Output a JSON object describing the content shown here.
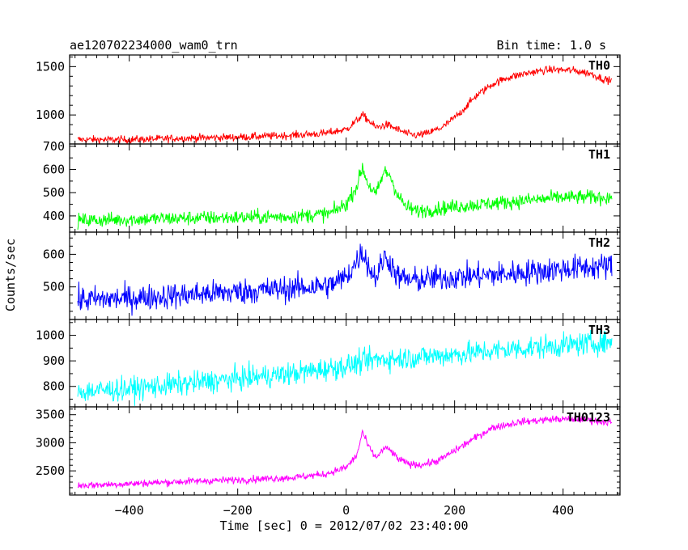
{
  "header": {
    "title": "ae120702234000_wam0_trn",
    "bin_time": "Bin time: 1.0 s"
  },
  "axes": {
    "xlabel": "Time [sec] 0 = 2012/07/02 23:40:00",
    "ylabel": "Counts/sec",
    "xlim": [
      -510,
      505
    ],
    "x_major_ticks": [
      -400,
      -200,
      0,
      200,
      400
    ],
    "x_tick_labels": [
      "−400",
      "−200",
      "0",
      "200",
      "400"
    ],
    "x_minor_step": 20
  },
  "chart_data": [
    {
      "type": "line",
      "series": [
        {
          "name": "TH0",
          "color": "#ff0000"
        }
      ],
      "ylim": [
        700,
        1620
      ],
      "major_ticks": [
        1000,
        1500
      ],
      "tick_labels": [
        "1000",
        "1500"
      ],
      "minor_step": 100,
      "data_range": [
        -495,
        490
      ],
      "noise": 28,
      "profile": [
        [
          -495,
          745
        ],
        [
          -400,
          745
        ],
        [
          -300,
          760
        ],
        [
          -200,
          770
        ],
        [
          -100,
          790
        ],
        [
          -40,
          810
        ],
        [
          0,
          850
        ],
        [
          15,
          920
        ],
        [
          30,
          1000
        ],
        [
          40,
          950
        ],
        [
          55,
          870
        ],
        [
          75,
          900
        ],
        [
          95,
          850
        ],
        [
          115,
          800
        ],
        [
          130,
          790
        ],
        [
          150,
          810
        ],
        [
          180,
          880
        ],
        [
          210,
          1020
        ],
        [
          240,
          1200
        ],
        [
          270,
          1320
        ],
        [
          300,
          1390
        ],
        [
          340,
          1440
        ],
        [
          380,
          1470
        ],
        [
          420,
          1460
        ],
        [
          450,
          1430
        ],
        [
          470,
          1380
        ],
        [
          490,
          1350
        ]
      ]
    },
    {
      "type": "line",
      "series": [
        {
          "name": "TH1",
          "color": "#00ff00"
        }
      ],
      "ylim": [
        330,
        710
      ],
      "major_ticks": [
        400,
        500,
        600,
        700
      ],
      "tick_labels": [
        "400",
        "500",
        "600",
        "700"
      ],
      "minor_step": 50,
      "data_range": [
        -495,
        490
      ],
      "noise": 22,
      "profile": [
        [
          -495,
          380
        ],
        [
          -400,
          385
        ],
        [
          -300,
          390
        ],
        [
          -200,
          393
        ],
        [
          -100,
          397
        ],
        [
          -30,
          410
        ],
        [
          0,
          450
        ],
        [
          20,
          530
        ],
        [
          30,
          610
        ],
        [
          40,
          540
        ],
        [
          55,
          490
        ],
        [
          70,
          590
        ],
        [
          80,
          580
        ],
        [
          95,
          490
        ],
        [
          110,
          440
        ],
        [
          130,
          420
        ],
        [
          200,
          440
        ],
        [
          300,
          460
        ],
        [
          400,
          480
        ],
        [
          490,
          480
        ]
      ]
    },
    {
      "type": "line",
      "series": [
        {
          "name": "TH2",
          "color": "#0000ff"
        }
      ],
      "ylim": [
        400,
        668
      ],
      "major_ticks": [
        500,
        600
      ],
      "tick_labels": [
        "500",
        "600"
      ],
      "minor_step": 25,
      "data_range": [
        -495,
        490
      ],
      "noise": 28,
      "profile": [
        [
          -495,
          460
        ],
        [
          -400,
          465
        ],
        [
          -300,
          475
        ],
        [
          -200,
          485
        ],
        [
          -100,
          495
        ],
        [
          -30,
          505
        ],
        [
          0,
          530
        ],
        [
          20,
          580
        ],
        [
          30,
          610
        ],
        [
          45,
          550
        ],
        [
          55,
          530
        ],
        [
          70,
          590
        ],
        [
          80,
          580
        ],
        [
          95,
          530
        ],
        [
          120,
          520
        ],
        [
          200,
          530
        ],
        [
          300,
          540
        ],
        [
          400,
          555
        ],
        [
          490,
          565
        ]
      ]
    },
    {
      "type": "line",
      "series": [
        {
          "name": "TH3",
          "color": "#00ffff"
        }
      ],
      "ylim": [
        720,
        1062
      ],
      "major_ticks": [
        800,
        900,
        1000
      ],
      "tick_labels": [
        "800",
        "900",
        "1000"
      ],
      "minor_step": 50,
      "data_range": [
        -495,
        490
      ],
      "noise": 32,
      "profile": [
        [
          -495,
          780
        ],
        [
          -400,
          790
        ],
        [
          -300,
          810
        ],
        [
          -200,
          830
        ],
        [
          -100,
          850
        ],
        [
          0,
          880
        ],
        [
          50,
          905
        ],
        [
          100,
          910
        ],
        [
          200,
          925
        ],
        [
          300,
          945
        ],
        [
          400,
          960
        ],
        [
          490,
          975
        ]
      ]
    },
    {
      "type": "line",
      "series": [
        {
          "name": "TH0123",
          "color": "#ff00ff"
        }
      ],
      "ylim": [
        2070,
        3640
      ],
      "major_ticks": [
        2500,
        3000,
        3500
      ],
      "tick_labels": [
        "2500",
        "3000",
        "3500"
      ],
      "minor_step": 100,
      "data_range": [
        -495,
        490
      ],
      "noise": 45,
      "profile": [
        [
          -495,
          2240
        ],
        [
          -400,
          2270
        ],
        [
          -300,
          2310
        ],
        [
          -200,
          2340
        ],
        [
          -100,
          2380
        ],
        [
          -40,
          2440
        ],
        [
          0,
          2560
        ],
        [
          20,
          2780
        ],
        [
          30,
          3200
        ],
        [
          40,
          2950
        ],
        [
          55,
          2730
        ],
        [
          70,
          2900
        ],
        [
          80,
          2880
        ],
        [
          95,
          2720
        ],
        [
          115,
          2620
        ],
        [
          140,
          2610
        ],
        [
          170,
          2680
        ],
        [
          200,
          2860
        ],
        [
          240,
          3100
        ],
        [
          270,
          3270
        ],
        [
          320,
          3370
        ],
        [
          380,
          3420
        ],
        [
          430,
          3420
        ],
        [
          490,
          3360
        ]
      ]
    }
  ]
}
